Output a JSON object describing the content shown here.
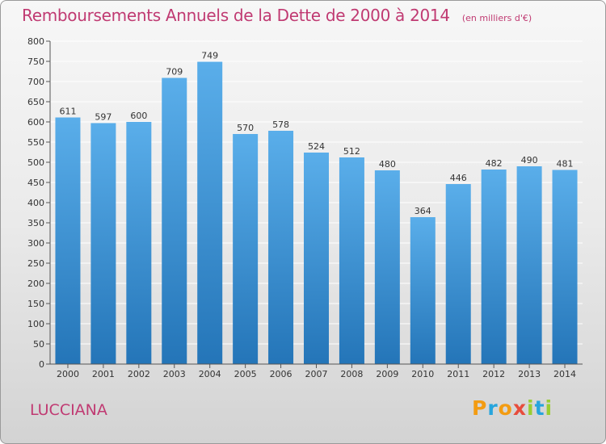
{
  "title": "Remboursements Annuels de la Dette de 2000 à 2014",
  "unit_label": "(en milliers d'€)",
  "place_name": "LUCCIANA",
  "brand": {
    "letters": [
      "P",
      "r",
      "o",
      "x",
      "i",
      "t",
      "i"
    ],
    "colors": [
      "#f39c12",
      "#27a5dd",
      "#f39c12",
      "#e74c3c",
      "#9acd32",
      "#27a5dd",
      "#9acd32"
    ]
  },
  "colors": {
    "title": "#c03a72",
    "bar_top": "#5aaeea",
    "bar_bottom": "#2475b8",
    "grid": "#ffffff"
  },
  "chart_data": {
    "type": "bar",
    "title": "Remboursements Annuels de la Dette de 2000 à 2014",
    "xlabel": "",
    "ylabel": "",
    "ylim": [
      0,
      800
    ],
    "ytick_step": 50,
    "grid": true,
    "categories": [
      "2000",
      "2001",
      "2002",
      "2003",
      "2004",
      "2005",
      "2006",
      "2007",
      "2008",
      "2009",
      "2010",
      "2011",
      "2012",
      "2013",
      "2014"
    ],
    "values": [
      611,
      597,
      600,
      709,
      749,
      570,
      578,
      524,
      512,
      480,
      364,
      446,
      482,
      490,
      481
    ]
  }
}
